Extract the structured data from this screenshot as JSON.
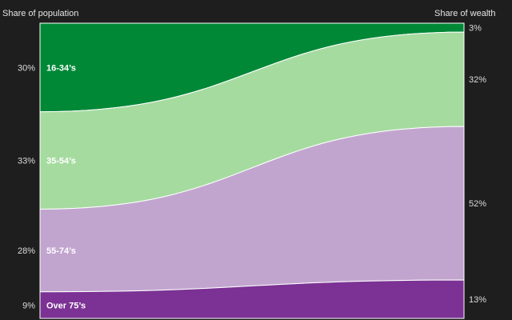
{
  "header": {
    "left_label": "Share of population",
    "right_label": "Share of wealth"
  },
  "chart_data": {
    "type": "area",
    "xlabel": "",
    "ylabel": "",
    "left_axis_label": "Share of population",
    "right_axis_label": "Share of wealth",
    "ylim": [
      0,
      100
    ],
    "grid": false,
    "legend": "inline labels inside bands",
    "series": [
      {
        "name": "16-34’s",
        "population_pct": 30,
        "wealth_pct": 3,
        "population_label": "30%",
        "wealth_label": "3%",
        "color": "#008837"
      },
      {
        "name": "35-54’s",
        "population_pct": 33,
        "wealth_pct": 32,
        "population_label": "33%",
        "wealth_label": "32%",
        "color": "#a6dba0"
      },
      {
        "name": "55-74’s",
        "population_pct": 28,
        "wealth_pct": 52,
        "population_label": "28%",
        "wealth_label": "52%",
        "color": "#c2a5cf"
      },
      {
        "name": "Over 75’s",
        "population_pct": 9,
        "wealth_pct": 13,
        "population_label": "9%",
        "wealth_label": "13%",
        "color": "#7b3294"
      }
    ]
  }
}
